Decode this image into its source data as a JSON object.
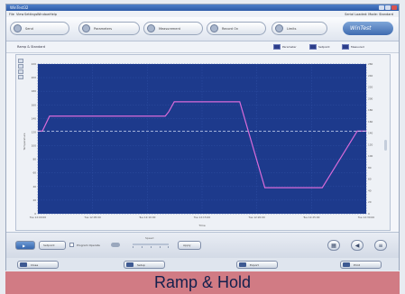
{
  "window": {
    "title": "WinTest32",
    "menu": [
      "File",
      "View",
      "Settings",
      "Window",
      "Help"
    ],
    "status_right": "Serial Loaded: Mode: Standard"
  },
  "toolbar": {
    "buttons": [
      {
        "label": "Send",
        "icon": "search-icon"
      },
      {
        "label": "Parameters",
        "icon": "gear-icon"
      },
      {
        "label": "Measurement",
        "icon": "ruler-icon"
      },
      {
        "label": "Record On",
        "icon": "record-icon"
      },
      {
        "label": "Limits",
        "icon": "arrows-icon"
      }
    ],
    "brand": "WinTest"
  },
  "subbar": {
    "name": "Ramp & Standard",
    "legend": [
      "Parameter",
      "Setpoint",
      "Measured"
    ]
  },
  "chart_data": {
    "type": "line",
    "xlabel": "Time",
    "ylabel": "Temperature",
    "x_ticks": [
      "Tue 12:00:00",
      "Tue 12:05:00",
      "Tue 12:10:00",
      "Tue 12:15:00",
      "Tue 12:20:00",
      "Tue 12:25:00",
      "Tue 12:30:00"
    ],
    "y_ticks": [
      "0",
      "20",
      "40",
      "60",
      "80",
      "100",
      "120",
      "140",
      "160",
      "180",
      "200",
      "220"
    ],
    "y_right_ticks": [
      "0",
      "20",
      "40",
      "60",
      "80",
      "100",
      "120",
      "140",
      "160",
      "180",
      "200",
      "220",
      "240",
      "260"
    ],
    "ylim": [
      0,
      230
    ],
    "xlim": [
      0,
      30
    ],
    "grid": true,
    "series": [
      {
        "values_x": [
          0,
          0.5,
          1.3,
          14.2,
          14.6,
          15.2,
          22.5,
          25.3,
          30,
          31.7,
          35.6,
          36.6
        ],
        "values_y": [
          127,
          127,
          150,
          150,
          157,
          172,
          172,
          40,
          40,
          40,
          127,
          127
        ],
        "color": "#d96bd9"
      },
      {
        "values_x": [
          0,
          36.6
        ],
        "values_y": [
          127,
          127
        ],
        "color": "#cfd8f0",
        "dashed": true
      }
    ]
  },
  "bottombar": {
    "play_label": "▶",
    "mode_label": "Setpoint",
    "checkbox_label": "Program Operate",
    "slider_label": "Speed",
    "apply_label": "Apply"
  },
  "footer": {
    "buttons": [
      "Close",
      "Setup",
      "Export",
      "Print"
    ]
  },
  "caption": "Ramp & Hold"
}
